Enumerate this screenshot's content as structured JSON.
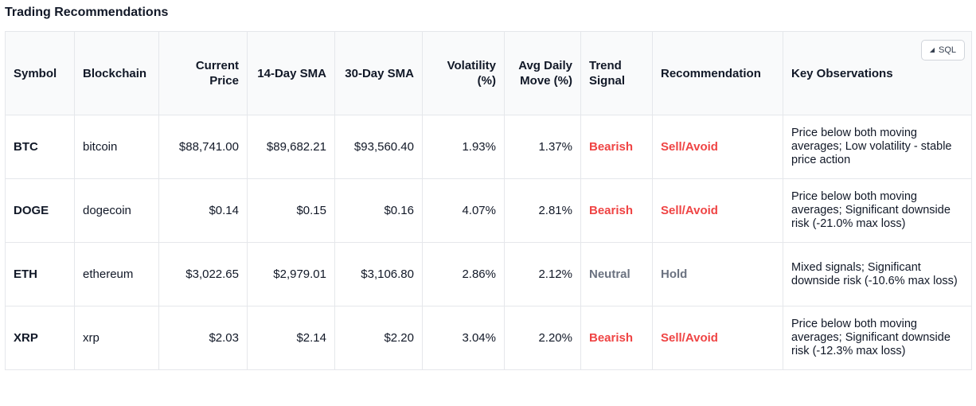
{
  "title": "Trading Recommendations",
  "sql_button": {
    "label": "SQL",
    "icon": "caret-triangle-icon"
  },
  "columns": [
    "Symbol",
    "Blockchain",
    "Current Price",
    "14-Day SMA",
    "30-Day SMA",
    "Volatility (%)",
    "Avg Daily Move (%)",
    "Trend Signal",
    "Recommendation",
    "Key Observations"
  ],
  "rows": [
    {
      "symbol": "BTC",
      "blockchain": "bitcoin",
      "current_price": "$88,741.00",
      "sma14": "$89,682.21",
      "sma30": "$93,560.40",
      "volatility": "1.93%",
      "avg_move": "1.37%",
      "trend": "Bearish",
      "recommendation": "Sell/Avoid",
      "observations": "Price below both moving averages; Low volatility - stable price action"
    },
    {
      "symbol": "DOGE",
      "blockchain": "dogecoin",
      "current_price": "$0.14",
      "sma14": "$0.15",
      "sma30": "$0.16",
      "volatility": "4.07%",
      "avg_move": "2.81%",
      "trend": "Bearish",
      "recommendation": "Sell/Avoid",
      "observations": "Price below both moving averages; Significant downside risk (-21.0% max loss)"
    },
    {
      "symbol": "ETH",
      "blockchain": "ethereum",
      "current_price": "$3,022.65",
      "sma14": "$2,979.01",
      "sma30": "$3,106.80",
      "volatility": "2.86%",
      "avg_move": "2.12%",
      "trend": "Neutral",
      "recommendation": "Hold",
      "observations": "Mixed signals; Significant downside risk (-10.6% max loss)"
    },
    {
      "symbol": "XRP",
      "blockchain": "xrp",
      "current_price": "$2.03",
      "sma14": "$2.14",
      "sma30": "$2.20",
      "volatility": "3.04%",
      "avg_move": "2.20%",
      "trend": "Bearish",
      "recommendation": "Sell/Avoid",
      "observations": "Price below both moving averages; Significant downside risk (-12.3% max loss)"
    }
  ],
  "colors": {
    "bearish": "#ef4444",
    "neutral": "#6b7280",
    "header_bg": "#f9fafb",
    "border": "#e5e7eb"
  }
}
